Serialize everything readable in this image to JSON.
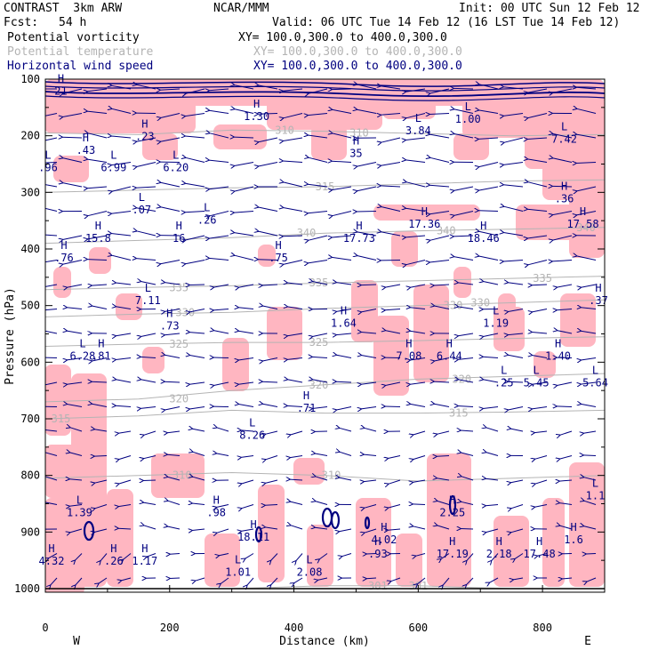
{
  "header": {
    "model": "CONTRAST  3km ARW",
    "center": "NCAR/MMM",
    "init": "Init: 00 UTC Sun 12 Feb 12",
    "fcst_label": "Fcst:",
    "fcst_value": "54 h",
    "valid": "Valid: 06 UTC Tue 14 Feb 12 (16 LST Tue 14 Feb 12)"
  },
  "fields": [
    {
      "name": "Potential vorticity",
      "xy": "XY= 100.0,300.0 to 400.0,300.0",
      "color": "#000000"
    },
    {
      "name": "Potential temperature",
      "xy": "XY= 100.0,300.0 to 400.0,300.0",
      "color": "#b4b4b4"
    },
    {
      "name": "Horizontal wind speed",
      "xy": "XY= 100.0,300.0 to 400.0,300.0",
      "color": "#000080"
    }
  ],
  "chart_data": {
    "type": "cross-section",
    "xlabel": "Distance (km)",
    "ylabel": "Pressure (hPa)",
    "xlim": [
      0,
      900
    ],
    "ylim": [
      1000,
      100
    ],
    "x_ticks": [
      0,
      200,
      400,
      600,
      800
    ],
    "y_ticks": [
      100,
      200,
      300,
      400,
      500,
      600,
      700,
      800,
      900,
      1000
    ],
    "x_end_labels": {
      "left": "W",
      "right": "E"
    },
    "colors": {
      "pv_shading": "#ffb6c1",
      "theta": "#b4b4b4",
      "wind": "#000080",
      "pv_contour": "#000080"
    },
    "isentropes": [
      {
        "label": "310",
        "points": [
          [
            0,
            195
          ],
          [
            150,
            198
          ],
          [
            300,
            190
          ],
          [
            450,
            192
          ],
          [
            600,
            196
          ],
          [
            750,
            200
          ],
          [
            900,
            198
          ]
        ],
        "labels_at": [
          [
            385,
            190
          ],
          [
            505,
            195
          ]
        ]
      },
      {
        "label": "315",
        "points": [
          [
            0,
            300
          ],
          [
            150,
            296
          ],
          [
            300,
            292
          ],
          [
            450,
            290
          ],
          [
            600,
            285
          ],
          [
            750,
            280
          ],
          [
            900,
            278
          ]
        ],
        "labels_at": [
          [
            450,
            290
          ]
        ]
      },
      {
        "label": "340",
        "points": [
          [
            0,
            390
          ],
          [
            150,
            385
          ],
          [
            300,
            380
          ],
          [
            450,
            372
          ],
          [
            600,
            368
          ],
          [
            750,
            365
          ],
          [
            900,
            362
          ]
        ],
        "labels_at": [
          [
            420,
            372
          ],
          [
            645,
            368
          ],
          [
            870,
            362
          ]
        ]
      },
      {
        "label": "335",
        "points": [
          [
            0,
            472
          ],
          [
            150,
            468
          ],
          [
            300,
            465
          ],
          [
            450,
            460
          ],
          [
            600,
            456
          ],
          [
            750,
            452
          ],
          [
            900,
            448
          ]
        ],
        "labels_at": [
          [
            215,
            468
          ],
          [
            440,
            460
          ],
          [
            800,
            452
          ]
        ]
      },
      {
        "label": "330",
        "points": [
          [
            0,
            520
          ],
          [
            150,
            515
          ],
          [
            300,
            512
          ],
          [
            450,
            505
          ],
          [
            600,
            500
          ],
          [
            750,
            495
          ],
          [
            900,
            490
          ]
        ],
        "labels_at": [
          [
            225,
            512
          ],
          [
            656,
            500
          ],
          [
            700,
            495
          ]
        ]
      },
      {
        "label": "325",
        "points": [
          [
            0,
            572
          ],
          [
            150,
            568
          ],
          [
            300,
            565
          ],
          [
            450,
            565
          ],
          [
            600,
            562
          ],
          [
            750,
            558
          ],
          [
            900,
            555
          ]
        ],
        "labels_at": [
          [
            215,
            568
          ],
          [
            440,
            565
          ]
        ]
      },
      {
        "label": "320",
        "points": [
          [
            0,
            670
          ],
          [
            150,
            665
          ],
          [
            300,
            650
          ],
          [
            450,
            640
          ],
          [
            600,
            630
          ],
          [
            750,
            625
          ],
          [
            900,
            620
          ]
        ],
        "labels_at": [
          [
            215,
            665
          ],
          [
            440,
            640
          ],
          [
            670,
            630
          ]
        ]
      },
      {
        "label": "315",
        "points": [
          [
            0,
            700
          ],
          [
            150,
            695
          ],
          [
            300,
            685
          ],
          [
            450,
            690
          ],
          [
            600,
            690
          ],
          [
            750,
            688
          ],
          [
            900,
            685
          ]
        ],
        "labels_at": [
          [
            25,
            700
          ],
          [
            665,
            690
          ]
        ]
      },
      {
        "label": "310",
        "points": [
          [
            0,
            805
          ],
          [
            150,
            800
          ],
          [
            300,
            795
          ],
          [
            450,
            800
          ],
          [
            600,
            810
          ],
          [
            750,
            805
          ],
          [
            900,
            800
          ]
        ],
        "labels_at": [
          [
            220,
            800
          ],
          [
            460,
            800
          ]
        ]
      },
      {
        "label": "301",
        "points": [
          [
            300,
            1000
          ],
          [
            450,
            995
          ],
          [
            600,
            995
          ],
          [
            750,
            1000
          ]
        ],
        "labels_at": [
          [
            535,
            995
          ],
          [
            600,
            995
          ]
        ]
      }
    ],
    "extrema": [
      {
        "type": "H",
        "value": "21",
        "x": 25,
        "p": 110
      },
      {
        "type": "H",
        "value": "1.30",
        "x": 340,
        "p": 155
      },
      {
        "type": "L",
        "value": "1.00",
        "x": 680,
        "p": 160
      },
      {
        "type": "L",
        "value": "3.84",
        "x": 600,
        "p": 180
      },
      {
        "type": "L",
        "value": "7.42",
        "x": 835,
        "p": 195
      },
      {
        "type": "H",
        "value": ".23",
        "x": 160,
        "p": 190
      },
      {
        "type": "H",
        "value": ".43",
        "x": 65,
        "p": 215
      },
      {
        "type": "L",
        "value": "6.99",
        "x": 110,
        "p": 245
      },
      {
        "type": "L",
        "value": "6.20",
        "x": 210,
        "p": 245
      },
      {
        "type": "L",
        "value": ".96",
        "x": 0,
        "p": 245
      },
      {
        "type": "H",
        "value": "35",
        "x": 500,
        "p": 220
      },
      {
        "type": "H",
        "value": ".36",
        "x": 835,
        "p": 300
      },
      {
        "type": "L",
        "value": ".07",
        "x": 155,
        "p": 320
      },
      {
        "type": "L",
        "value": ".26",
        "x": 260,
        "p": 338
      },
      {
        "type": "H",
        "value": "17.36",
        "x": 610,
        "p": 345
      },
      {
        "type": "H",
        "value": "17.58",
        "x": 865,
        "p": 345
      },
      {
        "type": "H",
        "value": "15.8",
        "x": 85,
        "p": 370
      },
      {
        "type": "H",
        "value": "16",
        "x": 215,
        "p": 370
      },
      {
        "type": "H",
        "value": "17.73",
        "x": 505,
        "p": 370
      },
      {
        "type": "H",
        "value": "18.46",
        "x": 705,
        "p": 370
      },
      {
        "type": "H",
        "value": ".76",
        "x": 30,
        "p": 405
      },
      {
        "type": "H",
        "value": ".75",
        "x": 375,
        "p": 405
      },
      {
        "type": "H",
        "value": ".37",
        "x": 890,
        "p": 480
      },
      {
        "type": "L",
        "value": "7.11",
        "x": 165,
        "p": 480
      },
      {
        "type": "H",
        "value": ".73",
        "x": 200,
        "p": 525
      },
      {
        "type": "H",
        "value": "1.64",
        "x": 480,
        "p": 520
      },
      {
        "type": "L",
        "value": "1.19",
        "x": 725,
        "p": 520
      },
      {
        "type": "L",
        "value": "6.28",
        "x": 60,
        "p": 578
      },
      {
        "type": "H",
        "value": ".81",
        "x": 90,
        "p": 578
      },
      {
        "type": "H",
        "value": "7.08",
        "x": 585,
        "p": 578
      },
      {
        "type": "H",
        "value": "6.44",
        "x": 650,
        "p": 578
      },
      {
        "type": "H",
        "value": "1.40",
        "x": 825,
        "p": 578
      },
      {
        "type": "L",
        "value": ".25",
        "x": 738,
        "p": 625
      },
      {
        "type": "L",
        "value": "5.45",
        "x": 790,
        "p": 625
      },
      {
        "type": "L",
        "value": "5.64",
        "x": 885,
        "p": 625
      },
      {
        "type": "H",
        "value": ".71",
        "x": 420,
        "p": 670
      },
      {
        "type": "L",
        "value": "8.26",
        "x": 333,
        "p": 718
      },
      {
        "type": "L",
        "value": "1.39",
        "x": 55,
        "p": 855
      },
      {
        "type": "H",
        "value": ".98",
        "x": 275,
        "p": 855
      },
      {
        "type": "H",
        "value": "2.25",
        "x": 655,
        "p": 855
      },
      {
        "type": "L",
        "value": "1.1",
        "x": 885,
        "p": 825
      },
      {
        "type": "H",
        "value": "18.11",
        "x": 335,
        "p": 898
      },
      {
        "type": "H",
        "value": "4.02",
        "x": 545,
        "p": 903
      },
      {
        "type": "H",
        "value": "1.6",
        "x": 850,
        "p": 903
      },
      {
        "type": "H",
        "value": ".93",
        "x": 535,
        "p": 928
      },
      {
        "type": "H",
        "value": "17.19",
        "x": 655,
        "p": 928
      },
      {
        "type": "H",
        "value": "2.18",
        "x": 730,
        "p": 928
      },
      {
        "type": "H",
        "value": "17.48",
        "x": 795,
        "p": 928
      },
      {
        "type": "H",
        "value": "4.32",
        "x": 10,
        "p": 940
      },
      {
        "type": "H",
        "value": ".26",
        "x": 110,
        "p": 940
      },
      {
        "type": "H",
        "value": "1.17",
        "x": 160,
        "p": 940
      },
      {
        "type": "L",
        "value": "1.01",
        "x": 310,
        "p": 960
      },
      {
        "type": "L",
        "value": "2.08",
        "x": 425,
        "p": 960
      }
    ]
  }
}
